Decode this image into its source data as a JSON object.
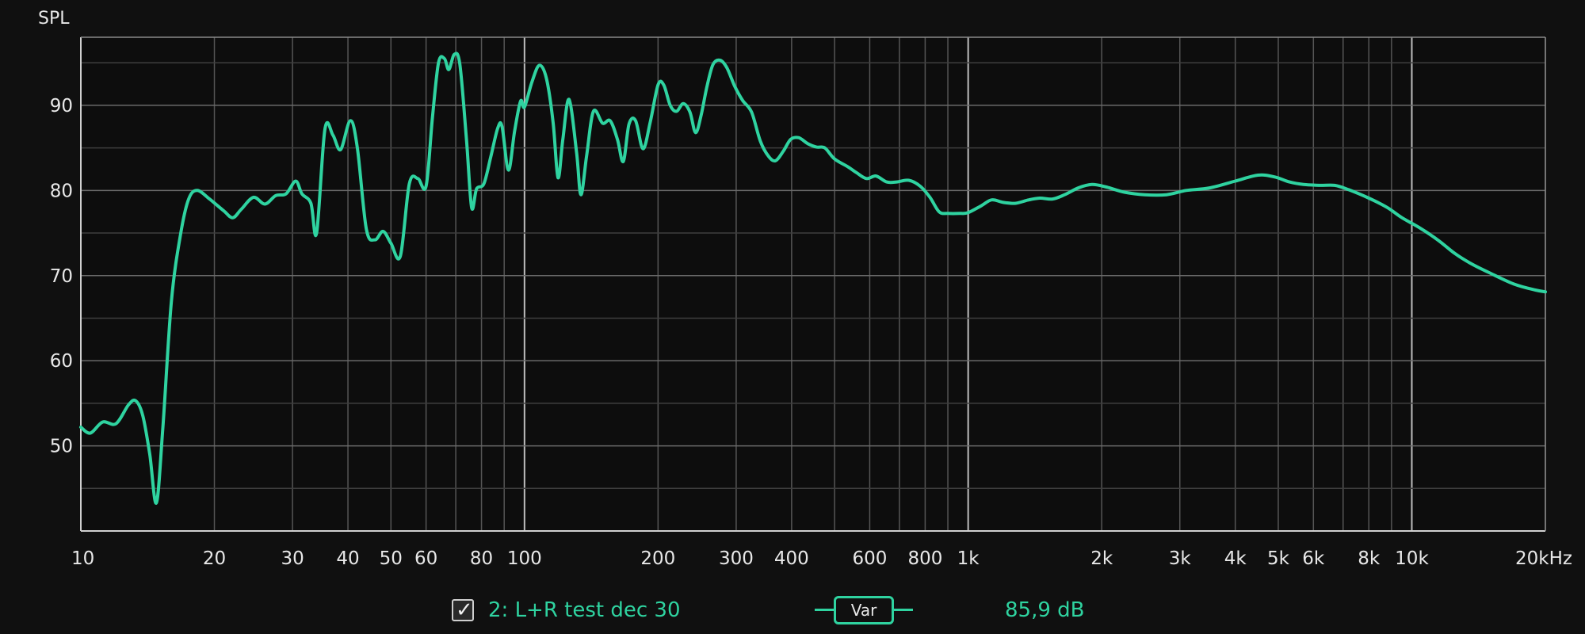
{
  "chart_data": {
    "type": "line",
    "ylabel": "SPL",
    "xscale": "log",
    "xlim": [
      10,
      20000
    ],
    "ylim": [
      40,
      98
    ],
    "grid": true,
    "x_tick_labels": [
      {
        "f": 10,
        "label": "10"
      },
      {
        "f": 20,
        "label": "20"
      },
      {
        "f": 30,
        "label": "30"
      },
      {
        "f": 40,
        "label": "40"
      },
      {
        "f": 50,
        "label": "50"
      },
      {
        "f": 60,
        "label": "60"
      },
      {
        "f": 80,
        "label": "80"
      },
      {
        "f": 100,
        "label": "100"
      },
      {
        "f": 200,
        "label": "200"
      },
      {
        "f": 300,
        "label": "300"
      },
      {
        "f": 400,
        "label": "400"
      },
      {
        "f": 600,
        "label": "600"
      },
      {
        "f": 800,
        "label": "800"
      },
      {
        "f": 1000,
        "label": "1k"
      },
      {
        "f": 2000,
        "label": "2k"
      },
      {
        "f": 3000,
        "label": "3k"
      },
      {
        "f": 4000,
        "label": "4k"
      },
      {
        "f": 5000,
        "label": "5k"
      },
      {
        "f": 6000,
        "label": "6k"
      },
      {
        "f": 8000,
        "label": "8k"
      },
      {
        "f": 10000,
        "label": "10k"
      },
      {
        "f": 20000,
        "label": "20kHz"
      }
    ],
    "y_ticks": [
      50,
      60,
      70,
      80,
      90
    ],
    "series": [
      {
        "name": "2: L+R test dec 30",
        "color": "#2fd3a0",
        "points": [
          [
            10,
            52.2
          ],
          [
            10.5,
            51.5
          ],
          [
            11.2,
            52.8
          ],
          [
            12,
            52.6
          ],
          [
            12.8,
            54.8
          ],
          [
            13.3,
            55.3
          ],
          [
            13.8,
            53.5
          ],
          [
            14.3,
            49
          ],
          [
            14.8,
            43.3
          ],
          [
            15.3,
            52
          ],
          [
            16,
            67
          ],
          [
            16.8,
            75
          ],
          [
            17.5,
            79
          ],
          [
            18.3,
            80
          ],
          [
            19.5,
            79
          ],
          [
            21,
            77.6
          ],
          [
            22,
            76.8
          ],
          [
            23,
            77.8
          ],
          [
            24.5,
            79.2
          ],
          [
            26,
            78.4
          ],
          [
            27.5,
            79.4
          ],
          [
            29,
            79.6
          ],
          [
            30.5,
            81.1
          ],
          [
            31.5,
            79.6
          ],
          [
            33,
            78.5
          ],
          [
            34,
            75
          ],
          [
            35.5,
            87.2
          ],
          [
            37,
            86.5
          ],
          [
            38.5,
            84.8
          ],
          [
            40.5,
            88.2
          ],
          [
            42,
            85
          ],
          [
            44,
            75.5
          ],
          [
            46,
            74.2
          ],
          [
            48,
            75.2
          ],
          [
            50,
            73.8
          ],
          [
            52.5,
            72.3
          ],
          [
            55,
            80.8
          ],
          [
            57.5,
            81.4
          ],
          [
            60,
            80.5
          ],
          [
            62,
            88.5
          ],
          [
            64,
            95
          ],
          [
            66,
            95.5
          ],
          [
            67.5,
            94.2
          ],
          [
            69.5,
            96
          ],
          [
            71.5,
            94.8
          ],
          [
            74,
            86
          ],
          [
            76,
            78
          ],
          [
            78,
            80.2
          ],
          [
            81,
            80.8
          ],
          [
            84,
            84
          ],
          [
            87,
            87.3
          ],
          [
            89,
            87.5
          ],
          [
            92,
            82.4
          ],
          [
            95,
            87
          ],
          [
            98,
            90.5
          ],
          [
            100,
            89.8
          ],
          [
            104,
            92.8
          ],
          [
            108,
            94.7
          ],
          [
            112,
            93.2
          ],
          [
            116,
            88
          ],
          [
            119,
            81.5
          ],
          [
            122,
            86
          ],
          [
            126,
            90.7
          ],
          [
            131,
            84.5
          ],
          [
            134,
            79.5
          ],
          [
            138,
            84
          ],
          [
            143,
            89.3
          ],
          [
            150,
            87.9
          ],
          [
            156,
            88.2
          ],
          [
            162,
            86
          ],
          [
            167,
            83.4
          ],
          [
            172,
            87.8
          ],
          [
            178,
            88.2
          ],
          [
            185,
            84.9
          ],
          [
            192,
            88
          ],
          [
            200,
            92.4
          ],
          [
            206,
            92.4
          ],
          [
            213,
            90
          ],
          [
            220,
            89.3
          ],
          [
            228,
            90.2
          ],
          [
            236,
            89.2
          ],
          [
            243,
            86.8
          ],
          [
            250,
            88.8
          ],
          [
            258,
            92.3
          ],
          [
            266,
            94.8
          ],
          [
            276,
            95.3
          ],
          [
            286,
            94.4
          ],
          [
            298,
            92.2
          ],
          [
            310,
            90.6
          ],
          [
            325,
            89.2
          ],
          [
            340,
            85.8
          ],
          [
            355,
            84
          ],
          [
            368,
            83.5
          ],
          [
            383,
            84.6
          ],
          [
            398,
            86
          ],
          [
            415,
            86.2
          ],
          [
            435,
            85.5
          ],
          [
            455,
            85.1
          ],
          [
            475,
            85
          ],
          [
            500,
            83.7
          ],
          [
            535,
            82.8
          ],
          [
            560,
            82.1
          ],
          [
            590,
            81.4
          ],
          [
            620,
            81.7
          ],
          [
            655,
            81
          ],
          [
            690,
            81
          ],
          [
            735,
            81.2
          ],
          [
            780,
            80.5
          ],
          [
            820,
            79.2
          ],
          [
            860,
            77.5
          ],
          [
            900,
            77.3
          ],
          [
            960,
            77.3
          ],
          [
            1000,
            77.4
          ],
          [
            1070,
            78.2
          ],
          [
            1130,
            78.9
          ],
          [
            1200,
            78.6
          ],
          [
            1280,
            78.5
          ],
          [
            1370,
            78.9
          ],
          [
            1450,
            79.1
          ],
          [
            1550,
            79
          ],
          [
            1650,
            79.5
          ],
          [
            1770,
            80.3
          ],
          [
            1900,
            80.7
          ],
          [
            2050,
            80.4
          ],
          [
            2250,
            79.8
          ],
          [
            2500,
            79.5
          ],
          [
            2800,
            79.5
          ],
          [
            3100,
            80
          ],
          [
            3500,
            80.3
          ],
          [
            4000,
            81.1
          ],
          [
            4500,
            81.8
          ],
          [
            4900,
            81.6
          ],
          [
            5300,
            81
          ],
          [
            5700,
            80.7
          ],
          [
            6200,
            80.6
          ],
          [
            6700,
            80.6
          ],
          [
            7200,
            80.1
          ],
          [
            8000,
            79.1
          ],
          [
            8800,
            78
          ],
          [
            9500,
            76.8
          ],
          [
            10500,
            75.5
          ],
          [
            11500,
            74.1
          ],
          [
            12500,
            72.6
          ],
          [
            13500,
            71.5
          ],
          [
            15000,
            70.3
          ],
          [
            17000,
            69
          ],
          [
            19000,
            68.3
          ],
          [
            20000,
            68.1
          ]
        ]
      }
    ]
  },
  "legend": {
    "checkbox_mark": "✓",
    "series_label": "2: L+R test dec 30",
    "var_label": "Var",
    "value": "85,9 dB"
  }
}
